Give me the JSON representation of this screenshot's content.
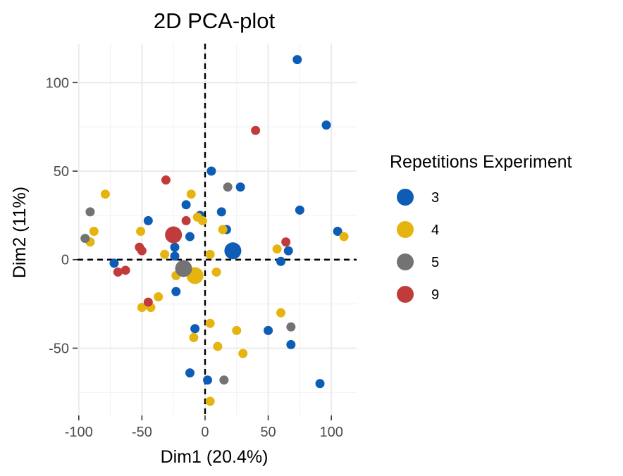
{
  "chart_data": {
    "type": "scatter",
    "title": "2D PCA-plot",
    "xlabel": "Dim1 (20.4%)",
    "ylabel": "Dim2 (11%)",
    "xlim": [
      -101,
      120
    ],
    "ylim": [
      -88,
      122
    ],
    "xticks": [
      -100,
      -50,
      0,
      50,
      100
    ],
    "yticks": [
      -50,
      0,
      50,
      100
    ],
    "xtick_labels": [
      "-100",
      "-50",
      "0",
      "50",
      "100"
    ],
    "ytick_labels": [
      "-50",
      "0",
      "50",
      "100"
    ],
    "reference_lines": {
      "x": 0,
      "y": 0,
      "style": "dashed"
    },
    "grid": true,
    "legend": {
      "title": "Repetitions Experiment",
      "position": "right",
      "entries": [
        {
          "label": "3",
          "color": "#0d5cb6"
        },
        {
          "label": "4",
          "color": "#e6b40f"
        },
        {
          "label": "5",
          "color": "#737373"
        },
        {
          "label": "9",
          "color": "#c23b3b"
        }
      ]
    },
    "series": [
      {
        "name": "3",
        "color": "#0d5cb6",
        "centroid": [
          22,
          5
        ],
        "points": [
          [
            73,
            113
          ],
          [
            96,
            76
          ],
          [
            5,
            50
          ],
          [
            28,
            41
          ],
          [
            75,
            28
          ],
          [
            -15,
            31
          ],
          [
            -45,
            22
          ],
          [
            -4,
            25
          ],
          [
            13,
            27
          ],
          [
            17,
            17
          ],
          [
            105,
            16
          ],
          [
            -12,
            13
          ],
          [
            -24,
            7
          ],
          [
            -24,
            2
          ],
          [
            66,
            5
          ],
          [
            60,
            -1
          ],
          [
            -72,
            -2
          ],
          [
            -23,
            -18
          ],
          [
            -8,
            -39
          ],
          [
            50,
            -40
          ],
          [
            68,
            -48
          ],
          [
            -12,
            -64
          ],
          [
            2,
            -68
          ],
          [
            91,
            -70
          ]
        ]
      },
      {
        "name": "4",
        "color": "#e6b40f",
        "centroid": [
          -8,
          -9
        ],
        "points": [
          [
            -79,
            37
          ],
          [
            -11,
            37
          ],
          [
            -6,
            24
          ],
          [
            -2,
            22
          ],
          [
            -88,
            16
          ],
          [
            -51,
            16
          ],
          [
            14,
            17
          ],
          [
            110,
            13
          ],
          [
            -91,
            10
          ],
          [
            -32,
            3
          ],
          [
            4,
            3
          ],
          [
            57,
            6
          ],
          [
            -23,
            -9
          ],
          [
            9,
            -7
          ],
          [
            -37,
            -21
          ],
          [
            -50,
            -27
          ],
          [
            -43,
            -27
          ],
          [
            60,
            -30
          ],
          [
            4,
            -36
          ],
          [
            25,
            -40
          ],
          [
            -9,
            -44
          ],
          [
            10,
            -49
          ],
          [
            30,
            -53
          ],
          [
            4,
            -80
          ]
        ]
      },
      {
        "name": "5",
        "color": "#737373",
        "centroid": [
          -17,
          -5
        ],
        "points": [
          [
            18,
            41
          ],
          [
            -91,
            27
          ],
          [
            -95,
            12
          ],
          [
            68,
            -38
          ],
          [
            15,
            -68
          ]
        ]
      },
      {
        "name": "9",
        "color": "#c23b3b",
        "centroid": [
          -25,
          14
        ],
        "points": [
          [
            40,
            73
          ],
          [
            -31,
            45
          ],
          [
            -15,
            22
          ],
          [
            64,
            10
          ],
          [
            -52,
            7
          ],
          [
            -50,
            5
          ],
          [
            -63,
            -6
          ],
          [
            -69,
            -7
          ],
          [
            -45,
            -24
          ]
        ]
      }
    ]
  }
}
